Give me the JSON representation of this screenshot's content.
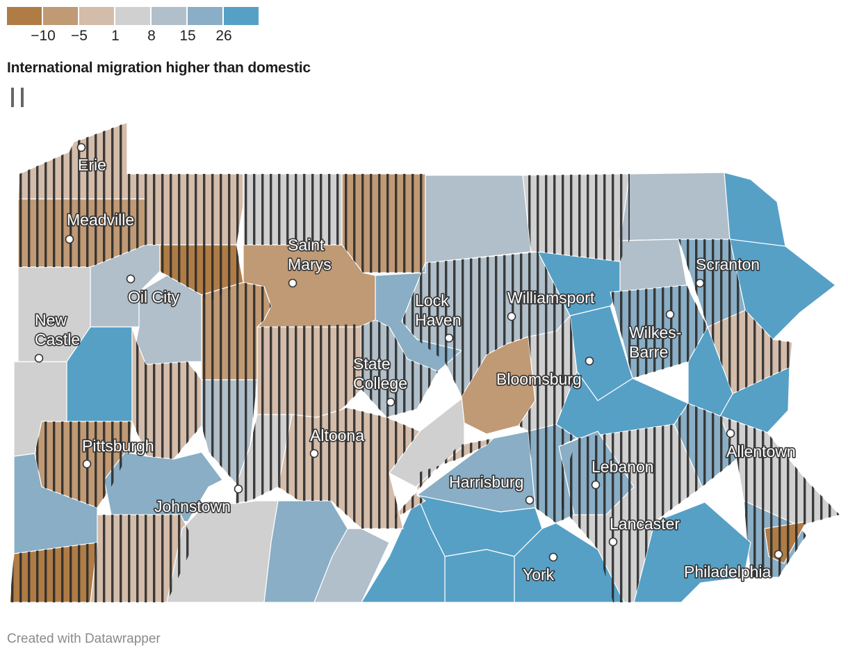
{
  "legend": {
    "colors": [
      "#b07c45",
      "#c09a75",
      "#d4bcaa",
      "#d0d0d0",
      "#b0bfca",
      "#89aec5",
      "#56a0c6"
    ],
    "ticks": [
      "−10",
      "−5",
      "1",
      "8",
      "15",
      "26"
    ]
  },
  "title": "International migration higher than domestic",
  "hatch_key_icon": "vertical-stripes-pattern",
  "cities": [
    {
      "name": "Erie",
      "lines": [
        "Erie"
      ]
    },
    {
      "name": "Meadville",
      "lines": [
        "Meadville"
      ]
    },
    {
      "name": "Oil City",
      "lines": [
        "Oil City"
      ]
    },
    {
      "name": "New Castle",
      "lines": [
        "New",
        "Castle"
      ]
    },
    {
      "name": "Pittsburgh",
      "lines": [
        "Pittsburgh"
      ]
    },
    {
      "name": "Johnstown",
      "lines": [
        "Johnstown"
      ]
    },
    {
      "name": "Saint Marys",
      "lines": [
        "Saint",
        "Marys"
      ]
    },
    {
      "name": "Altoona",
      "lines": [
        "Altoona"
      ]
    },
    {
      "name": "State College",
      "lines": [
        "State",
        "College"
      ]
    },
    {
      "name": "Lock Haven",
      "lines": [
        "Lock",
        "Haven"
      ]
    },
    {
      "name": "Williamsport",
      "lines": [
        "Williamsport"
      ]
    },
    {
      "name": "Bloomsburg",
      "lines": [
        "Bloomsburg"
      ]
    },
    {
      "name": "Scranton",
      "lines": [
        "Scranton"
      ]
    },
    {
      "name": "Wilkes-Barre",
      "lines": [
        "Wilkes-",
        "Barre"
      ]
    },
    {
      "name": "Allentown",
      "lines": [
        "Allentown"
      ]
    },
    {
      "name": "Harrisburg",
      "lines": [
        "Harrisburg"
      ]
    },
    {
      "name": "Lebanon",
      "lines": [
        "Lebanon"
      ]
    },
    {
      "name": "Lancaster",
      "lines": [
        "Lancaster"
      ]
    },
    {
      "name": "York",
      "lines": [
        "York"
      ]
    },
    {
      "name": "Philadelphia",
      "lines": [
        "Philadelphia"
      ]
    }
  ],
  "credit": "Created with Datawrapper"
}
